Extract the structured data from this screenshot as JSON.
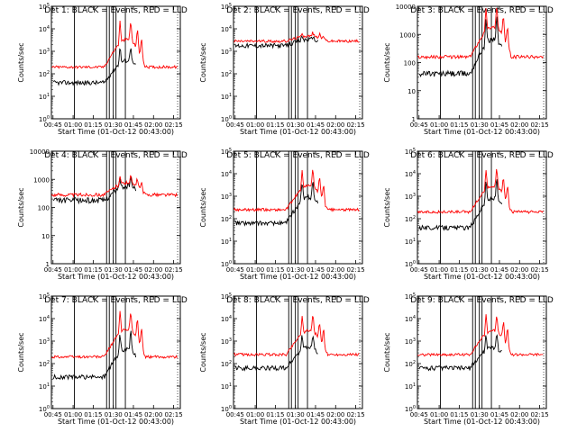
{
  "panels": [
    {
      "title": "Det 1: BLACK = Events, RED = LLD",
      "ylabel": "Counts/sec",
      "xlabel": "Start Time (01-Oct-12 00:43:00)",
      "yticks": [
        "10^0",
        "10^1",
        "10^2",
        "10^3",
        "10^4",
        "10^5"
      ],
      "ylim_exp": [
        0,
        5
      ],
      "base": {
        "black": 1.6,
        "red": 2.3
      },
      "peak": {
        "black": 2.9,
        "red": 3.9
      }
    },
    {
      "title": "Det 2: BLACK = Events, RED = LLD",
      "ylabel": "Counts/sec",
      "xlabel": "Start Time (01-Oct-12 00:43:00)",
      "yticks": [
        "10^0",
        "10^1",
        "10^2",
        "10^3",
        "10^4",
        "10^5"
      ],
      "ylim_exp": [
        0,
        5
      ],
      "base": {
        "black": 3.25,
        "red": 3.45
      },
      "peak": {
        "black": 3.6,
        "red": 3.75
      }
    },
    {
      "title": "Det 3: BLACK = Events, RED = LLD",
      "ylabel": "Counts/sec",
      "xlabel": "Start Time (01-Oct-12 00:43:00)",
      "yticks": [
        "1",
        "10",
        "100",
        "1000",
        "10000"
      ],
      "ylim_exp": [
        0,
        4
      ],
      "base": {
        "black": 1.6,
        "red": 2.2
      },
      "peak": {
        "black": 3.2,
        "red": 3.6
      }
    },
    {
      "title": "Det 4: BLACK = Events, RED = LLD",
      "ylabel": "Counts/sec",
      "xlabel": "Start Time (01-Oct-12 00:43:00)",
      "yticks": [
        "1",
        "10",
        "100",
        "1000",
        "10000"
      ],
      "ylim_exp": [
        0,
        4
      ],
      "base": {
        "black": 2.25,
        "red": 2.45
      },
      "peak": {
        "black": 2.9,
        "red": 3.0
      }
    },
    {
      "title": "Det 5: BLACK = Events, RED = LLD",
      "ylabel": "Counts/sec",
      "xlabel": "Start Time (01-Oct-12 00:43:00)",
      "yticks": [
        "10^0",
        "10^1",
        "10^2",
        "10^3",
        "10^4",
        "10^5"
      ],
      "ylim_exp": [
        0,
        5
      ],
      "base": {
        "black": 1.8,
        "red": 2.4
      },
      "peak": {
        "black": 3.3,
        "red": 3.8
      }
    },
    {
      "title": "Det 6: BLACK = Events, RED = LLD",
      "ylabel": "Counts/sec",
      "xlabel": "Start Time (01-Oct-12 00:43:00)",
      "yticks": [
        "10^0",
        "10^1",
        "10^2",
        "10^3",
        "10^4",
        "10^5"
      ],
      "ylim_exp": [
        0,
        5
      ],
      "base": {
        "black": 1.6,
        "red": 2.3
      },
      "peak": {
        "black": 3.3,
        "red": 3.8
      }
    },
    {
      "title": "Det 7: BLACK = Events, RED = LLD",
      "ylabel": "Counts/sec",
      "xlabel": "Start Time (01-Oct-12 00:43:00)",
      "yticks": [
        "10^0",
        "10^1",
        "10^2",
        "10^3",
        "10^4",
        "10^5"
      ],
      "ylim_exp": [
        0,
        5
      ],
      "base": {
        "black": 1.4,
        "red": 2.3
      },
      "peak": {
        "black": 3.0,
        "red": 3.9
      }
    },
    {
      "title": "Det 8: BLACK = Events, RED = LLD",
      "ylabel": "Counts/sec",
      "xlabel": "Start Time (01-Oct-12 00:43:00)",
      "yticks": [
        "10^0",
        "10^1",
        "10^2",
        "10^3",
        "10^4",
        "10^5"
      ],
      "ylim_exp": [
        0,
        5
      ],
      "base": {
        "black": 1.8,
        "red": 2.4
      },
      "peak": {
        "black": 3.0,
        "red": 3.8
      }
    },
    {
      "title": "Det 9: BLACK = Events, RED = LLD",
      "ylabel": "Counts/sec",
      "xlabel": "Start Time (01-Oct-12 00:43:00)",
      "yticks": [
        "10^0",
        "10^1",
        "10^2",
        "10^3",
        "10^4",
        "10^5"
      ],
      "ylim_exp": [
        0,
        5
      ],
      "base": {
        "black": 1.8,
        "red": 2.4
      },
      "peak": {
        "black": 3.0,
        "red": 3.8
      }
    }
  ],
  "chart_data": {
    "type": "line",
    "xticks": [
      "00:45",
      "01:00",
      "01:15",
      "01:30",
      "01:45",
      "02:00",
      "02:15"
    ],
    "xlim_minutes": [
      -1,
      95
    ],
    "vlines_minutes": [
      16,
      40,
      42,
      45,
      47,
      54
    ],
    "dotted_lines_minutes": [
      93,
      96,
      100
    ],
    "series": [
      {
        "name": "BLACK = Events",
        "color": "#000000"
      },
      {
        "name": "RED = LLD",
        "color": "#ff0000"
      }
    ],
    "y_scale": "log"
  }
}
